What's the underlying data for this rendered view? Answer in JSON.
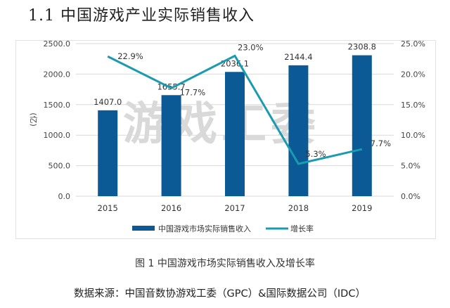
{
  "title": "1.1 中国游戏产业实际销售收入",
  "watermark": "游戏工委",
  "caption": "图 1 中国游戏市场实际销售收入及增长率",
  "source": "数据来源：中国音数协游戏工委（GPC）&国际数据公司（IDC）",
  "colors": {
    "bar": "#0b5a96",
    "line": "#1a9bb0"
  },
  "chart_data": {
    "type": "bar+line",
    "categories": [
      "2015",
      "2016",
      "2017",
      "2018",
      "2019"
    ],
    "series": [
      {
        "name": "中国游戏市场实际销售收入",
        "type": "bar",
        "axis": "left",
        "values": [
          1407.0,
          1655.7,
          2036.1,
          2144.4,
          2308.8
        ],
        "labels": [
          "1407.0",
          "1655.7",
          "2036.1",
          "2144.4",
          "2308.8"
        ]
      },
      {
        "name": "增长率",
        "type": "line",
        "axis": "right",
        "values": [
          22.9,
          17.7,
          23.0,
          5.3,
          7.7
        ],
        "labels": [
          "22.9%",
          "17.7%",
          "23.0%",
          "5.3%",
          "7.7%"
        ]
      }
    ],
    "ylabel": "(亿)",
    "ylim": [
      0,
      2500
    ],
    "y_ticks": [
      "0.0",
      "500.0",
      "1000.0",
      "1500.0",
      "2000.0",
      "2500.0"
    ],
    "y2lim": [
      0,
      25
    ],
    "y2_ticks": [
      "0.0%",
      "5.0%",
      "10.0%",
      "15.0%",
      "20.0%",
      "25.0%"
    ],
    "grid": true,
    "legend": "bottom"
  }
}
